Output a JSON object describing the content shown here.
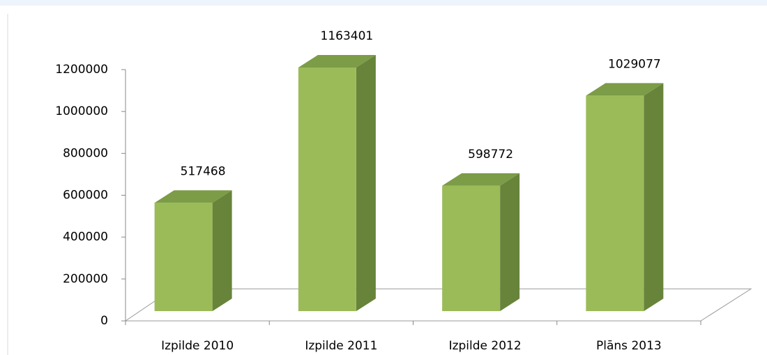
{
  "chart_data": {
    "type": "bar3d",
    "categories": [
      "Izpilde 2010",
      "Izpilde 2011",
      "Izpilde 2012",
      "Plāns 2013"
    ],
    "values": [
      517468,
      1163401,
      598772,
      1029077
    ],
    "color": "#9bbb59",
    "ylim": [
      0,
      1200000
    ],
    "yticks": [
      0,
      200000,
      400000,
      600000,
      800000,
      1000000,
      1200000
    ],
    "grid": false
  }
}
